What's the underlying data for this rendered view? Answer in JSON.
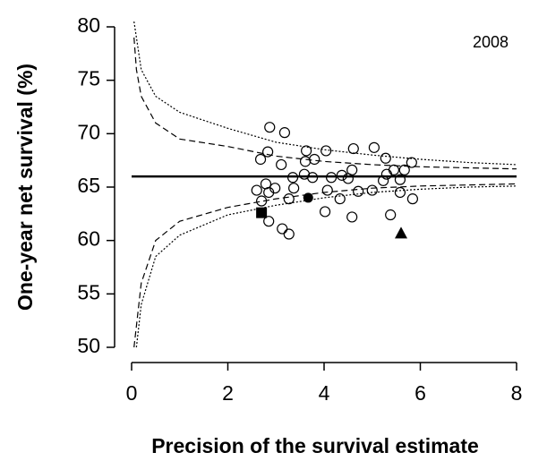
{
  "chart_data": {
    "type": "scatter",
    "title": "2008",
    "x_label": "Precision of the survival estimate",
    "y_label": "One-year net survival (%)",
    "xlim": [
      0,
      8
    ],
    "xticks": [
      0,
      2,
      4,
      6,
      8
    ],
    "ylim": [
      50,
      80
    ],
    "yticks": [
      50,
      55,
      60,
      65,
      70,
      75,
      80
    ],
    "grid": false,
    "color": "#000000",
    "series": [
      {
        "style": "solid",
        "x": [
          0,
          8
        ],
        "values": [
          66,
          66
        ]
      },
      {
        "style": "dashed",
        "x": [
          0.05,
          0.1,
          0.2,
          0.5,
          1,
          2,
          3,
          4,
          5,
          6,
          7,
          8
        ],
        "values": [
          79,
          76,
          73.5,
          71,
          69.5,
          68.8,
          67.9,
          67.4,
          67.1,
          66.9,
          66.8,
          66.7
        ]
      },
      {
        "style": "dotted",
        "x": [
          0.05,
          0.2,
          0.5,
          1,
          2,
          3,
          4,
          5,
          6,
          7,
          8
        ],
        "values": [
          80.5,
          76,
          73.5,
          72,
          70.5,
          69.2,
          68.5,
          68,
          67.6,
          67.3,
          67.1
        ]
      },
      {
        "style": "dashed",
        "x": [
          0.05,
          0.2,
          0.5,
          1,
          2,
          3,
          4,
          5,
          6,
          7,
          8
        ],
        "values": [
          50,
          56,
          60,
          61.8,
          63.1,
          63.9,
          64.5,
          64.9,
          65.1,
          65.2,
          65.3
        ]
      },
      {
        "style": "dotted",
        "x": [
          0.1,
          0.2,
          0.5,
          1,
          2,
          3,
          4,
          5,
          6,
          7,
          8
        ],
        "values": [
          50,
          54,
          58.5,
          60.5,
          62.4,
          63.3,
          64,
          64.5,
          64.8,
          65,
          65.1
        ]
      },
      {
        "marker": "open-circle",
        "x": [
          2.87,
          3.18,
          2.83,
          2.68,
          3.11,
          3.61,
          3.63,
          3.8,
          4.04,
          3.35,
          2.79,
          2.6,
          2.98,
          2.85,
          3.37,
          3.27,
          2.7,
          3.59,
          3.76,
          4.15,
          4.37,
          4.58,
          4.61,
          5.04,
          5.28,
          5.45,
          5.67,
          5.82,
          5.3,
          5.58,
          5.23,
          5.0,
          4.71,
          4.07,
          4.33,
          4.02,
          4.58,
          5.38,
          5.58,
          5.84,
          2.85,
          3.13,
          3.27,
          4.5
        ],
        "values": [
          70.6,
          70.1,
          68.3,
          67.6,
          67.1,
          67.4,
          68.4,
          67.6,
          68.4,
          65.9,
          65.3,
          64.7,
          64.9,
          64.5,
          64.9,
          63.9,
          63.7,
          66.2,
          65.9,
          65.9,
          66.1,
          66.6,
          68.6,
          68.7,
          67.7,
          66.6,
          66.6,
          67.3,
          66.2,
          65.7,
          65.6,
          64.7,
          64.6,
          64.7,
          63.9,
          62.7,
          62.2,
          62.4,
          64.5,
          63.9,
          61.8,
          61.1,
          60.6,
          65.8
        ]
      },
      {
        "marker": "filled-square",
        "x": [
          2.7
        ],
        "values": [
          62.6
        ]
      },
      {
        "marker": "filled-circle",
        "x": [
          3.67
        ],
        "values": [
          64.0
        ]
      },
      {
        "marker": "filled-triangle",
        "x": [
          5.6
        ],
        "values": [
          60.7
        ]
      }
    ]
  }
}
